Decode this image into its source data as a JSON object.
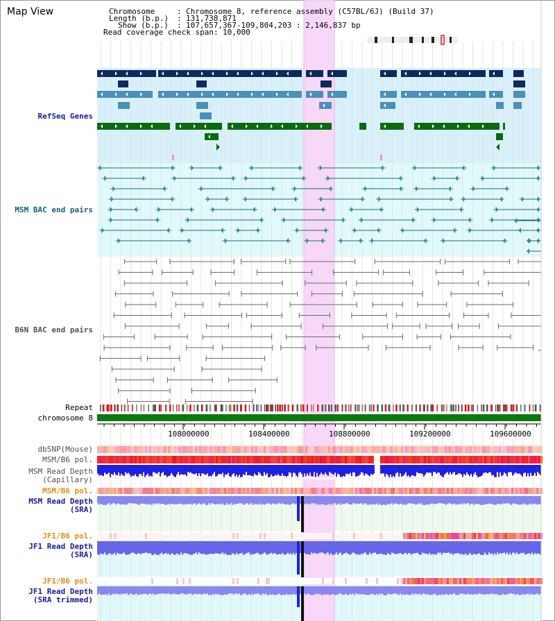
{
  "view": {
    "title": "Map View"
  },
  "header": {
    "chromosome_key": "Chromosome",
    "chromosome_value": "Chromosome 8, reference assembly (C57BL/6J) (Build 37)",
    "length_key": "Length (b.p.)",
    "length_value": "131,738,871",
    "show_key": "Show (b.p.)",
    "show_value": "107,657,367-109,804,203 : 2,146,837 bp",
    "coverage_key": "Read coverage check span",
    "coverage_value": "10,000",
    "separator": ":"
  },
  "tracks": {
    "refseq": "RefSeq Genes",
    "msm_bac": "MSM BAC end pairs",
    "b6n_bac": "B6N BAC end pairs",
    "repeat": "Repeat",
    "chromosome": "chromosome 8",
    "dbsnp": "dbSNP(Mouse)",
    "msm_b6_pol_1": "MSM/B6 pol.",
    "msm_depth_cap_1": "MSM Read Depth",
    "msm_depth_cap_2": "(Capillary)",
    "msm_b6_pol_2": "MSM/B6 pol.",
    "msm_depth_sra_1": "MSM Read Depth",
    "msm_depth_sra_2": "(SRA)",
    "jf1_b6_pol_1": "JF1/B6 pol.",
    "jf1_depth_sra_1": "JF1 Read Depth",
    "jf1_depth_sra_2": "(SRA)",
    "jf1_b6_pol_2": "JF1/B6 pol.",
    "jf1_depth_trim_1": "JF1 Read Depth",
    "jf1_depth_trim_2": "(SRA trimmed)"
  },
  "axis": {
    "ticks": [
      "108000000",
      "108400000",
      "108800000",
      "109200000",
      "109600000"
    ]
  },
  "colors": {
    "highlight": "#f8d8f8",
    "refseq_bg": "#d8f0fa",
    "msm_bg": "#e0fafa",
    "gene_navy": "#0c2a5c",
    "gene_steel": "#4a90b8",
    "gene_green": "#0a6a10",
    "chromosome_bar": "#0a7a10",
    "snp_pink": "#f8a8a8",
    "pol_red": "#f03030",
    "depth_blue": "#2020e0",
    "depth_light": "#8080f0"
  }
}
